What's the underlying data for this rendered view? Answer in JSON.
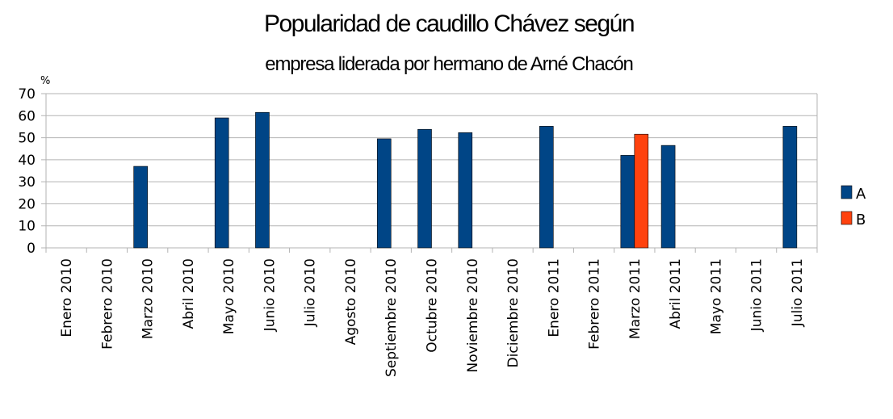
{
  "chart_data": {
    "type": "bar",
    "title": "Popularidad de caudillo Chávez según",
    "subtitle": "empresa liderada por hermano de Arné Chacón",
    "ylabel": "%",
    "xlabel": "",
    "ylim": [
      0,
      70
    ],
    "yticks": [
      0,
      10,
      20,
      30,
      40,
      50,
      60,
      70
    ],
    "grid": true,
    "legend_position": "right",
    "categories": [
      "Enero 2010",
      "Febrero 2010",
      "Marzo 2010",
      "Abril 2010",
      "Mayo 2010",
      "Junio 2010",
      "Julio 2010",
      "Agosto 2010",
      "Septiembre 2010",
      "Octubre 2010",
      "Noviembre 2010",
      "Diciembre 2010",
      "Enero 2011",
      "Febrero 2011",
      "Marzo 2011",
      "Abril  2011",
      "Mayo 2011",
      "Junio 2011",
      "Julio 2011"
    ],
    "series": [
      {
        "name": "A",
        "color": "#004586",
        "values": [
          null,
          null,
          37,
          null,
          59,
          61.5,
          null,
          null,
          49.5,
          53.8,
          52.3,
          null,
          55.2,
          null,
          42,
          46.5,
          null,
          null,
          55.2
        ]
      },
      {
        "name": "B",
        "color": "#ff420e",
        "values": [
          null,
          null,
          null,
          null,
          null,
          null,
          null,
          null,
          null,
          null,
          null,
          null,
          null,
          null,
          51.6,
          null,
          null,
          null,
          null
        ]
      }
    ]
  }
}
